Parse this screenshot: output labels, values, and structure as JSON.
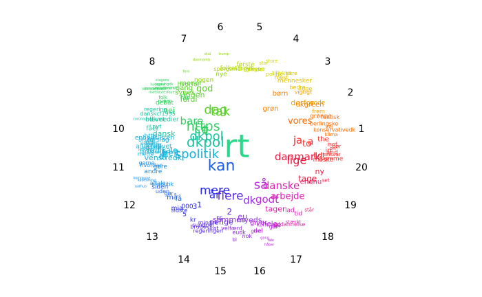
{
  "clusters": [
    {
      "label": "1",
      "color": "#ff2b2b",
      "words": [
        {
          "t": "ja",
          "s": 15
        },
        {
          "t": "the",
          "s": 10
        },
        {
          "t": "a",
          "s": 14
        },
        {
          "t": "to",
          "s": 13
        },
        {
          "t": "isof",
          "s": 8
        },
        {
          "t": "bør",
          "s": 8
        },
        {
          "t": "on",
          "s": 7
        },
        {
          "t": "in",
          "s": 9
        },
        {
          "t": "and",
          "s": 9
        },
        {
          "t": "ansvar",
          "s": 7
        },
        {
          "t": "lidt",
          "s": 11
        },
        {
          "t": "samme",
          "s": 9
        },
        {
          "t": "måske",
          "s": 9
        }
      ]
    },
    {
      "label": "2",
      "color": "#ff6a00",
      "words": [
        {
          "t": "vores",
          "s": 13
        },
        {
          "t": "grønne",
          "s": 9
        },
        {
          "t": "faktisk",
          "s": 8
        },
        {
          "t": "berlingske",
          "s": 8
        },
        {
          "t": "vej",
          "s": 8
        },
        {
          "t": "konservativedk",
          "s": 8
        },
        {
          "t": "klima",
          "s": 7
        }
      ]
    },
    {
      "label": "3",
      "color": "#f0a000",
      "words": [
        {
          "t": "vigtigt",
          "s": 8
        },
        {
          "t": "derfor",
          "s": 11
        },
        {
          "t": "gode",
          "s": 9
        },
        {
          "t": "frem",
          "s": 8
        }
      ]
    },
    {
      "label": "4",
      "color": "#e5c000",
      "words": [
        {
          "t": "mest",
          "s": 8
        },
        {
          "t": "sikre",
          "s": 7
        },
        {
          "t": "mennesker",
          "s": 9
        },
        {
          "t": "bedre",
          "s": 8
        },
        {
          "t": "unge",
          "s": 8
        }
      ]
    },
    {
      "label": "5",
      "color": "#d4d400",
      "words": [
        {
          "t": "glæder",
          "s": 8
        },
        {
          "t": "stor",
          "s": 7
        },
        {
          "t": "store",
          "s": 7
        },
        {
          "t": "politik",
          "s": 8
        },
        {
          "t": "tillykke",
          "s": 8
        }
      ]
    },
    {
      "label": "6",
      "color": "#b2d800",
      "words": [
        {
          "t": "spørgsmål",
          "s": 8
        },
        {
          "t": "folketinget",
          "s": 9
        },
        {
          "t": "første",
          "s": 9
        },
        {
          "t": "morgen",
          "s": 8
        }
      ]
    },
    {
      "label": "7",
      "color": "#8ed400",
      "words": [
        {
          "t": "nogen",
          "s": 9
        },
        {
          "t": "danmarkb",
          "s": 5
        },
        {
          "t": "skal",
          "s": 5
        },
        {
          "t": "nye",
          "s": 9
        },
        {
          "t": "trump",
          "s": 5
        }
      ]
    },
    {
      "label": "8",
      "color": "#5bd12a",
      "words": [
        {
          "t": "fordi",
          "s": 11
        },
        {
          "t": "synes",
          "s": 10
        },
        {
          "t": "gang",
          "s": 10
        },
        {
          "t": "ingen",
          "s": 11
        },
        {
          "t": "hvorfor",
          "s": 9
        },
        {
          "t": "mener",
          "s": 10
        },
        {
          "t": "fem",
          "s": 5
        },
        {
          "t": "dag",
          "s": 18
        },
        {
          "t": "god",
          "s": 13
        },
        {
          "t": "tak",
          "s": 18
        }
      ]
    },
    {
      "label": "9",
      "color": "#30d060",
      "words": [
        {
          "t": "co",
          "s": 18
        },
        {
          "t": "t",
          "s": 20
        },
        {
          "t": "nej",
          "s": 11
        },
        {
          "t": "bare",
          "s": 15
        },
        {
          "t": "https",
          "s": 19
        },
        {
          "t": "debat",
          "s": 9
        },
        {
          "t": "siger",
          "s": 7
        },
        {
          "t": "folk",
          "s": 7
        },
        {
          "t": "liberalalliance",
          "s": 5
        },
        {
          "t": "mattiastesfaye",
          "s": 5
        },
        {
          "t": "bonnyongelbrech",
          "s": 5
        },
        {
          "t": "hounskw",
          "s": 5
        },
        {
          "t": "sophielosehde",
          "s": 5
        },
        {
          "t": "regeringdk",
          "s": 5
        },
        {
          "t": "stagens",
          "s": 5
        },
        {
          "t": "får",
          "s": 10
        }
      ]
    },
    {
      "label": "10",
      "color": "#16c4a0",
      "words": [
        {
          "t": "dkpol",
          "s": 20
        },
        {
          "t": "dansk",
          "s": 11
        },
        {
          "t": "fået",
          "s": 9
        },
        {
          "t": "nyt",
          "s": 8
        },
        {
          "t": "coronapas",
          "s": 5
        },
        {
          "t": "blevet",
          "s": 9
        },
        {
          "t": "dkmedier",
          "s": 9
        },
        {
          "t": "danskcf1995",
          "s": 8
        },
        {
          "t": "regering",
          "s": 8
        }
      ]
    },
    {
      "label": "11",
      "color": "#16b0d8",
      "words": [
        {
          "t": "spolitik",
          "s": 18
        },
        {
          "t": "venstredk",
          "s": 11
        },
        {
          "t": "df",
          "s": 12
        },
        {
          "t": "sf",
          "s": 10
        },
        {
          "t": "helt",
          "s": 13
        },
        {
          "t": "mette",
          "s": 8
        },
        {
          "t": "larsloekke",
          "s": 8
        },
        {
          "t": "radikale",
          "s": 11
        },
        {
          "t": "løkke",
          "s": 8
        },
        {
          "t": "politik",
          "s": 8
        },
        {
          "t": "alternativet",
          "s": 9
        },
        {
          "t": "enig",
          "s": 10
        },
        {
          "t": "venstre",
          "s": 7
        },
        {
          "t": "pia",
          "s": 8
        },
        {
          "t": "olsen",
          "s": 8
        },
        {
          "t": "forslag",
          "s": 9
        },
        {
          "t": "enhedslisten",
          "s": 9
        },
        {
          "t": "http",
          "s": 9
        }
      ]
    },
    {
      "label": "12",
      "color": "#1a8ce6",
      "words": [
        {
          "t": "sfpolitik",
          "s": 8
        },
        {
          "t": "aftale",
          "s": 8
        },
        {
          "t": "aarhus",
          "s": 5
        },
        {
          "t": "københavn",
          "s": 5
        },
        {
          "t": "kommune",
          "s": 5
        },
        {
          "t": "andre",
          "s": 9
        },
        {
          "t": "gøre",
          "s": 9
        },
        {
          "t": "hvordan",
          "s": 8
        },
        {
          "t": "gerne",
          "s": 8
        }
      ]
    },
    {
      "label": "13",
      "color": "#1a5fe6",
      "words": [
        {
          "t": "kan",
          "s": 22
        },
        {
          "t": "få",
          "s": 10
        },
        {
          "t": "må",
          "s": 10
        },
        {
          "t": "gør",
          "s": 8
        },
        {
          "t": "uden",
          "s": 8
        },
        {
          "t": "siden",
          "s": 9
        }
      ]
    },
    {
      "label": "14",
      "color": "#2a2aee",
      "words": [
        {
          "t": "år",
          "s": 15
        },
        {
          "t": "mere",
          "s": 17
        },
        {
          "t": "kr",
          "s": 9
        },
        {
          "t": "1",
          "s": 11
        },
        {
          "t": "3",
          "s": 11
        },
        {
          "t": "5",
          "s": 9
        },
        {
          "t": "000",
          "s": 9
        },
        {
          "t": "sidste",
          "s": 8
        },
        {
          "t": "mia",
          "s": 9
        }
      ]
    },
    {
      "label": "15",
      "color": "#5a2ae6",
      "words": [
        {
          "t": "2",
          "s": 12
        },
        {
          "t": "flere",
          "s": 17
        },
        {
          "t": "penge",
          "s": 11
        },
        {
          "t": "rs",
          "s": 10
        },
        {
          "t": "skat",
          "s": 8
        },
        {
          "t": "regeringen",
          "s": 8
        },
        {
          "t": "mindre",
          "s": 8
        },
        {
          "t": "sundpol",
          "s": 8
        },
        {
          "t": "bruge",
          "s": 8
        }
      ]
    },
    {
      "label": "16",
      "color": "#8a2ae0",
      "words": [
        {
          "t": "dk",
          "s": 15
        },
        {
          "t": "myeds",
          "s": 11
        },
        {
          "t": "nok",
          "s": 8
        },
        {
          "t": "eu",
          "s": 11
        },
        {
          "t": "eudk",
          "s": 8
        },
        {
          "t": "bl",
          "s": 7
        },
        {
          "t": "velfærd",
          "s": 8
        },
        {
          "t": "sammen",
          "s": 11
        }
      ]
    },
    {
      "label": "17",
      "color": "#b82adc",
      "words": [
        {
          "t": "så",
          "s": 18
        },
        {
          "t": "godt",
          "s": 15
        },
        {
          "t": "se",
          "s": 9
        },
        {
          "t": "står",
          "s": 7
        },
        {
          "t": "går",
          "s": 8
        },
        {
          "t": "hele",
          "s": 10
        },
        {
          "t": "kommer",
          "s": 8
        },
        {
          "t": "tale",
          "s": 5
        },
        {
          "t": "håber",
          "s": 5
        },
        {
          "t": "gang",
          "s": 5
        },
        {
          "t": "giver",
          "s": 10
        },
        {
          "t": "del",
          "s": 9
        },
        {
          "t": "give",
          "s": 7
        }
      ]
    },
    {
      "label": "18",
      "color": "#e020b0",
      "words": [
        {
          "t": "danske",
          "s": 15
        },
        {
          "t": "arbejde",
          "s": 13
        },
        {
          "t": "tid",
          "s": 9
        },
        {
          "t": "lad",
          "s": 9
        },
        {
          "t": "stærkt",
          "s": 7
        },
        {
          "t": "uddannelse",
          "s": 8
        },
        {
          "t": "tager",
          "s": 11
        }
      ]
    },
    {
      "label": "19",
      "color": "#f01a78",
      "words": [
        {
          "t": "endnu",
          "s": 10
        },
        {
          "t": "står",
          "s": 7
        }
      ]
    },
    {
      "label": "20",
      "color": "#ee1840",
      "words": [
        {
          "t": "danmark",
          "s": 15
        },
        {
          "t": "lige",
          "s": 16
        },
        {
          "t": "ny",
          "s": 11
        },
        {
          "t": "set",
          "s": 7
        },
        {
          "t": "tage",
          "s": 12
        }
      ]
    }
  ],
  "center": {
    "text": "rt",
    "color": "#2ad88a"
  },
  "extra_words": [
    {
      "t": "dkgreen",
      "color": "#ff8000"
    },
    {
      "t": "børn",
      "color": "#ff8000"
    },
    {
      "t": "grøn",
      "color": "#ff8000"
    },
    {
      "t": "dkpol",
      "color": "#16c4a0"
    }
  ],
  "labels": [
    "1",
    "2",
    "3",
    "4",
    "5",
    "6",
    "7",
    "8",
    "9",
    "10",
    "11",
    "12",
    "13",
    "14",
    "15",
    "16",
    "17",
    "18",
    "19",
    "20"
  ]
}
